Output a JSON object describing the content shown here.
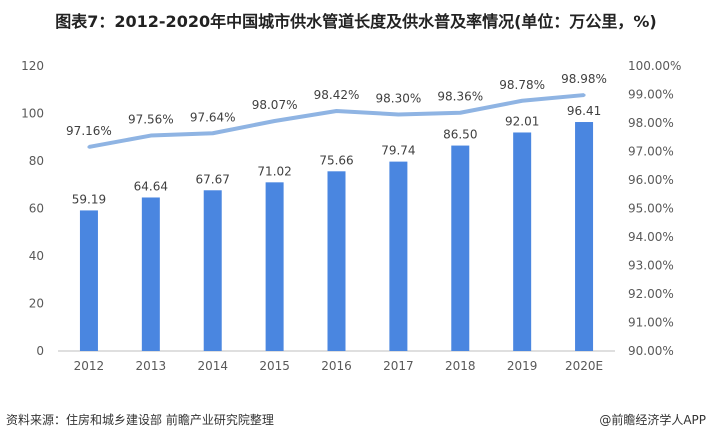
{
  "title": "图表7：2012-2020年中国城市供水管道长度及供水普及率情况(单位：万公里，%)",
  "source": "资料来源：住房和城乡建设部 前瞻产业研究院整理",
  "credit": "@前瞻经济学人APP",
  "colors": {
    "bar": "#4a86e0",
    "line": "#8fb4e3"
  },
  "chart_data": {
    "type": "bar+line",
    "categories": [
      "2012",
      "2013",
      "2014",
      "2015",
      "2016",
      "2017",
      "2018",
      "2019",
      "2020E"
    ],
    "series": [
      {
        "kind": "bar",
        "axis": "left",
        "values": [
          59.19,
          64.64,
          67.67,
          71.02,
          75.66,
          79.74,
          86.5,
          92.01,
          96.41
        ],
        "labels": [
          "59.19",
          "64.64",
          "67.67",
          "71.02",
          "75.66",
          "79.74",
          "86.50",
          "92.01",
          "96.41"
        ]
      },
      {
        "kind": "line",
        "axis": "right",
        "values": [
          97.16,
          97.56,
          97.64,
          98.07,
          98.42,
          98.3,
          98.36,
          98.78,
          98.98
        ],
        "labels": [
          "97.16%",
          "97.56%",
          "97.64%",
          "98.07%",
          "98.42%",
          "98.30%",
          "98.36%",
          "98.78%",
          "98.98%"
        ]
      }
    ],
    "left_axis": {
      "ylim": [
        0,
        120
      ],
      "ticks": [
        "0",
        "20",
        "40",
        "60",
        "80",
        "100",
        "120"
      ]
    },
    "right_axis": {
      "ylim": [
        90,
        100
      ],
      "ticks": [
        "90.00%",
        "91.00%",
        "92.00%",
        "93.00%",
        "94.00%",
        "95.00%",
        "96.00%",
        "97.00%",
        "98.00%",
        "99.00%",
        "100.00%"
      ]
    },
    "grid": false,
    "legend": "none"
  }
}
